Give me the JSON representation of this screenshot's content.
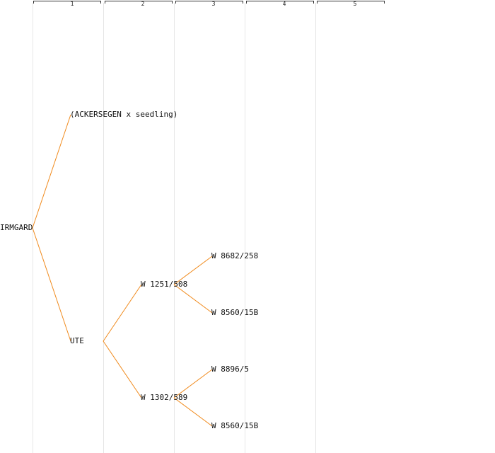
{
  "diagram": {
    "type": "pedigree",
    "generations": [
      "1",
      "2",
      "3",
      "4",
      "5"
    ],
    "root": {
      "label": "IRMGARD",
      "children": [
        {
          "label": "(ACKERSEGEN x seedling)",
          "children": []
        },
        {
          "label": "UTE",
          "children": [
            {
              "label": "W 1251/508",
              "children": [
                {
                  "label": "W 8682/258",
                  "children": []
                },
                {
                  "label": "W 8560/15B",
                  "children": []
                }
              ]
            },
            {
              "label": "W 1302/589",
              "children": [
                {
                  "label": "W 8896/5",
                  "children": []
                },
                {
                  "label": "W 8560/15B",
                  "children": []
                }
              ]
            }
          ]
        }
      ]
    },
    "colors": {
      "edge": "#f08a1c",
      "guide": "#e6e6e6",
      "text": "#111111"
    }
  }
}
